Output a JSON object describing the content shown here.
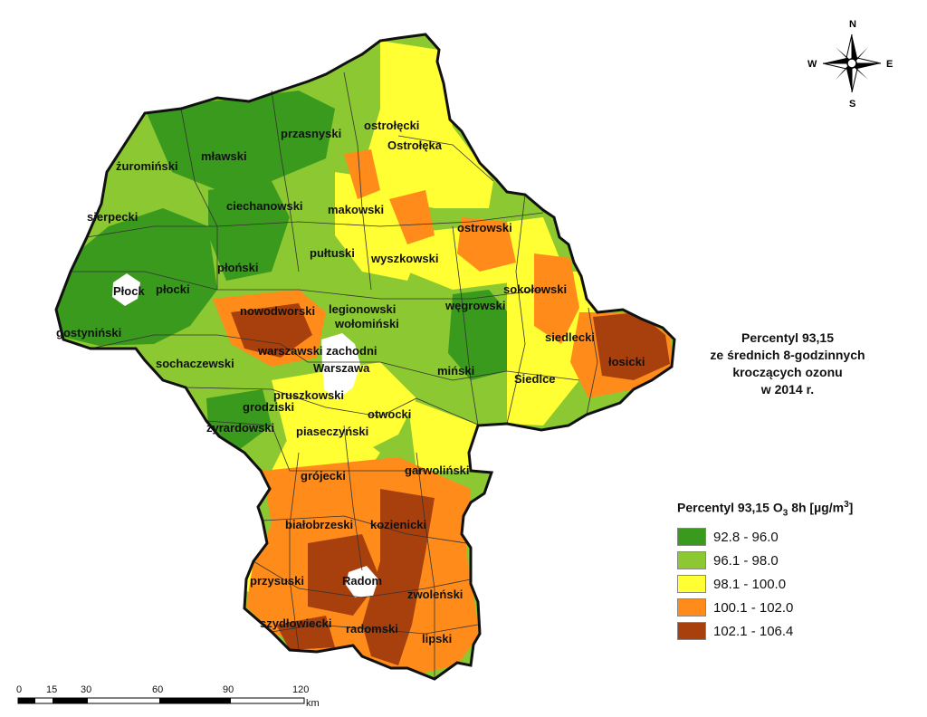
{
  "title_lines": [
    "Percentyl 93,15",
    "ze średnich 8-godzinnych",
    "kroczących ozonu",
    "w 2014 r."
  ],
  "legend": {
    "title_main": "Percentyl 93,15 O",
    "title_sub": "3",
    "title_unit_a": " 8h [µg/m",
    "title_sup": "3",
    "title_unit_b": "]",
    "classes": [
      {
        "label": "92.8 - 96.0",
        "color": "#3a9a1e"
      },
      {
        "label": "96.1 - 98.0",
        "color": "#8bc832"
      },
      {
        "label": "98.1 - 100.0",
        "color": "#ffff33"
      },
      {
        "label": "100.1 - 102.0",
        "color": "#ff8c1a"
      },
      {
        "label": "102.1 - 106.4",
        "color": "#a8400e"
      }
    ]
  },
  "compass": {
    "n": "N",
    "s": "S",
    "e": "E",
    "w": "W"
  },
  "scale": {
    "ticks": [
      "0",
      "15",
      "30",
      "60",
      "90",
      "120"
    ],
    "unit": "km"
  },
  "districts": [
    "ostrołęcki",
    "Ostrołęka",
    "przasnyski",
    "mławski",
    "żuromiński",
    "ciechanowski",
    "makowski",
    "sierpecki",
    "ostrowski",
    "pułtuski",
    "wyszkowski",
    "Płock",
    "płocki",
    "płoński",
    "sokołowski",
    "węgrowski",
    "nowodworski",
    "legionowski",
    "wołomiński",
    "gostyniński",
    "siedlecki",
    "łosicki",
    "warszawski zachodni",
    "Warszawa",
    "Siedlce",
    "sochaczewski",
    "miński",
    "pruszkowski",
    "grodziski",
    "żyrardowski",
    "piaseczyński",
    "otwocki",
    "grójecki",
    "garwoliński",
    "białobrzeski",
    "kozienicki",
    "przysuski",
    "Radom",
    "zwoleński",
    "szydłowiecki",
    "radomski",
    "lipski"
  ]
}
